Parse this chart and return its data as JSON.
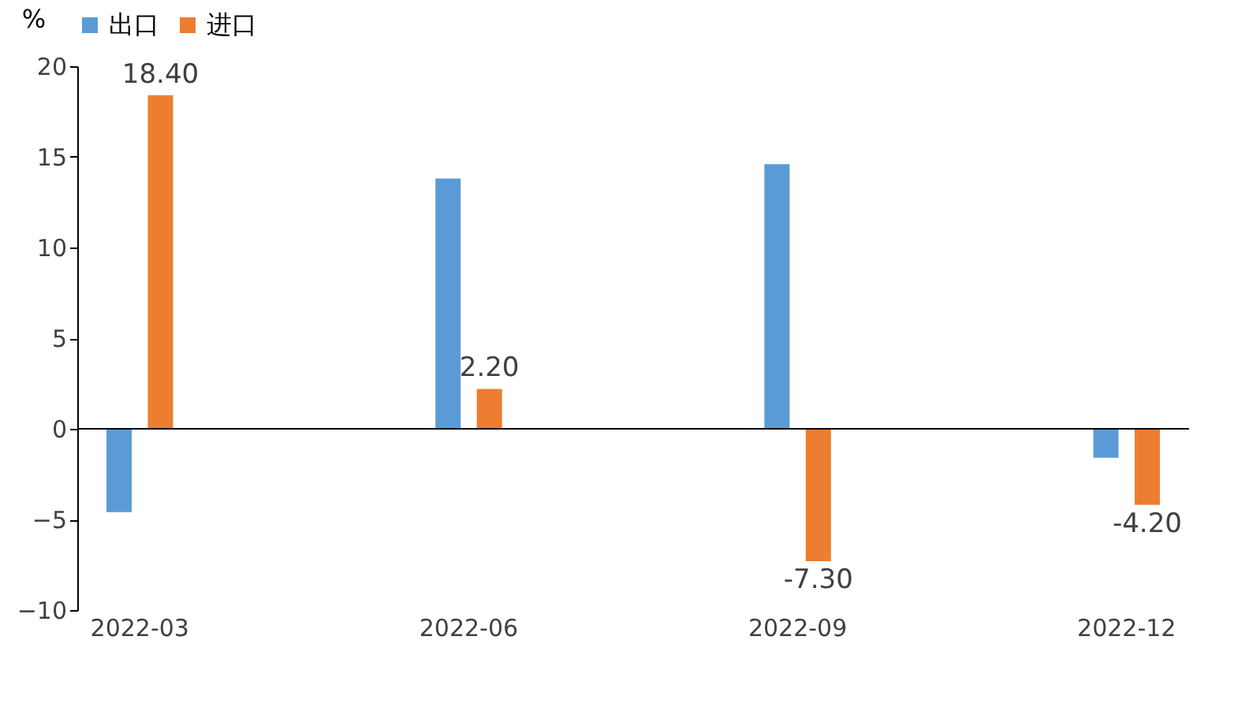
{
  "chart_data": {
    "type": "bar",
    "ylabel": "%",
    "categories": [
      "2022-03",
      "2022-06",
      "2022-09",
      "2022-12"
    ],
    "series": [
      {
        "name": "出口",
        "color": "#5b9bd5",
        "values": [
          -4.6,
          13.8,
          14.6,
          -1.6
        ]
      },
      {
        "name": "进口",
        "color": "#ed7d31",
        "values": [
          18.4,
          2.2,
          -7.3,
          -4.2
        ],
        "value_labels": [
          "18.40",
          "2.20",
          "-7.30",
          "-4.20"
        ]
      }
    ],
    "ylim": [
      -10,
      20
    ],
    "yticks": [
      -10,
      -5,
      0,
      5,
      10,
      15,
      20
    ],
    "ref_lines": [
      {
        "axis": "y",
        "value": 0,
        "color": "#000000"
      }
    ],
    "legend": "top"
  }
}
